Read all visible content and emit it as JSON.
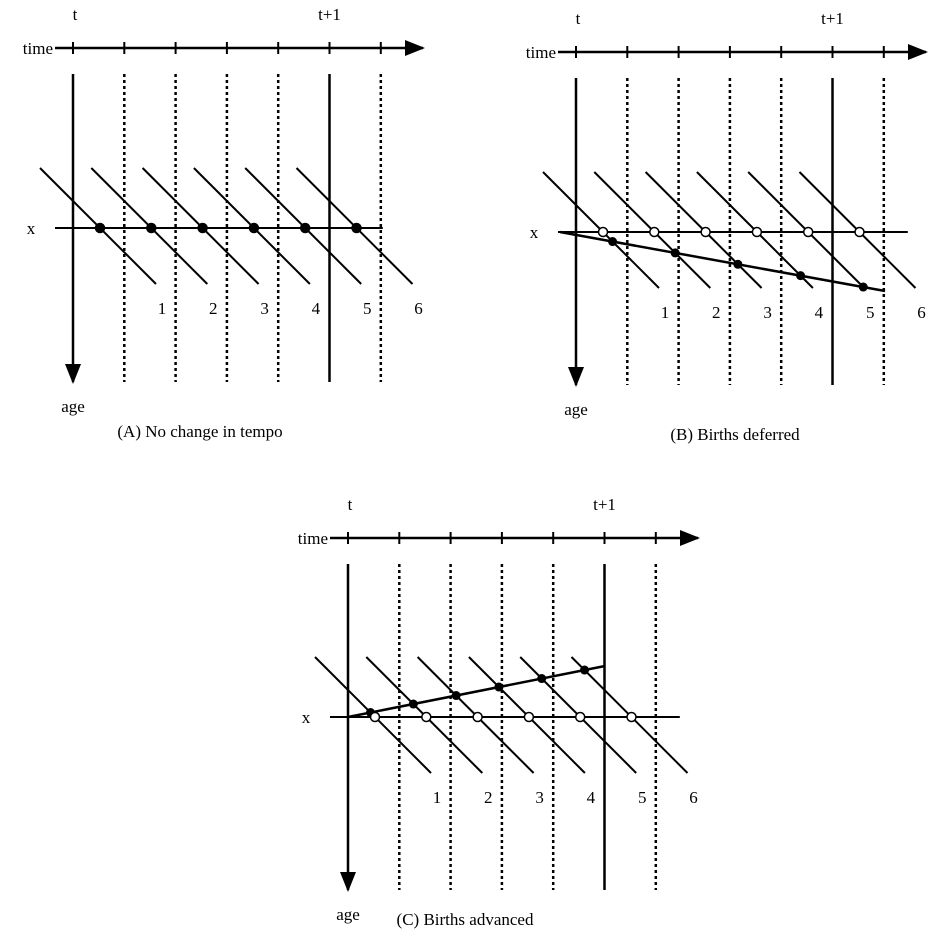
{
  "panels": [
    {
      "caption": "(A) No change in tempo",
      "time_label": "time",
      "t_label": "t",
      "t1_label": "t+1",
      "x_label": "x",
      "age_label": "age",
      "cohort_labels": [
        "1",
        "2",
        "3",
        "4",
        "5",
        "6"
      ]
    },
    {
      "caption": "(B) Births deferred",
      "time_label": "time",
      "t_label": "t",
      "t1_label": "t+1",
      "x_label": "x",
      "age_label": "age",
      "cohort_labels": [
        "1",
        "2",
        "3",
        "4",
        "5",
        "6"
      ]
    },
    {
      "caption": "(C) Births advanced",
      "time_label": "time",
      "t_label": "t",
      "t1_label": "t+1",
      "x_label": "x",
      "age_label": "age",
      "cohort_labels": [
        "1",
        "2",
        "3",
        "4",
        "5",
        "6"
      ]
    }
  ]
}
